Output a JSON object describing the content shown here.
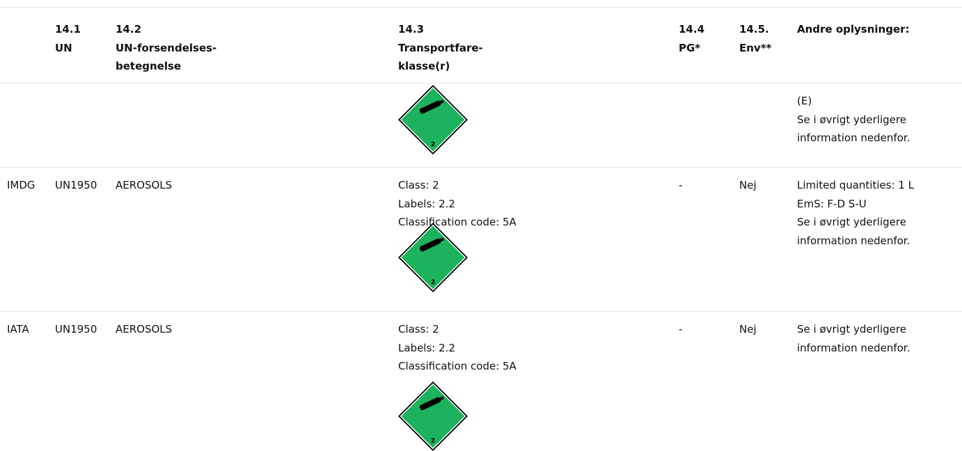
{
  "table": {
    "header": [
      [
        "14.1",
        "UN"
      ],
      [
        "14.2",
        "UN-forsendelses-",
        "betegnelse"
      ],
      [
        "14.3",
        "Transportfare-",
        "klasse(r)"
      ],
      [
        "14.4",
        "PG*"
      ],
      [
        "14.5.",
        "Env**"
      ],
      [
        "Andre oplysninger:"
      ]
    ],
    "rows": [
      {
        "hazard_label": "2",
        "other": [
          "(E)",
          "Se i øvrigt yderligere",
          "information nedenfor."
        ]
      },
      {
        "code": "IMDG",
        "un": "UN1950",
        "name": "AEROSOLS",
        "class": [
          "Class: 2",
          "Labels: 2.2",
          "Classification code: 5A"
        ],
        "hazard_label": "2",
        "pg": "-",
        "env": "Nej",
        "other": [
          "Limited quantities: 1 L",
          "EmS: F-D S-U",
          "Se i øvrigt yderligere",
          "information nedenfor."
        ]
      },
      {
        "code": "IATA",
        "un": "UN1950",
        "name": "AEROSOLS",
        "class": [
          "Class: 2",
          "Labels: 2.2",
          "Classification code: 5A"
        ],
        "hazard_label": "2",
        "pg": "-",
        "env": "Nej",
        "other": [
          "Se i øvrigt yderligere",
          "information nedenfor."
        ]
      }
    ]
  }
}
